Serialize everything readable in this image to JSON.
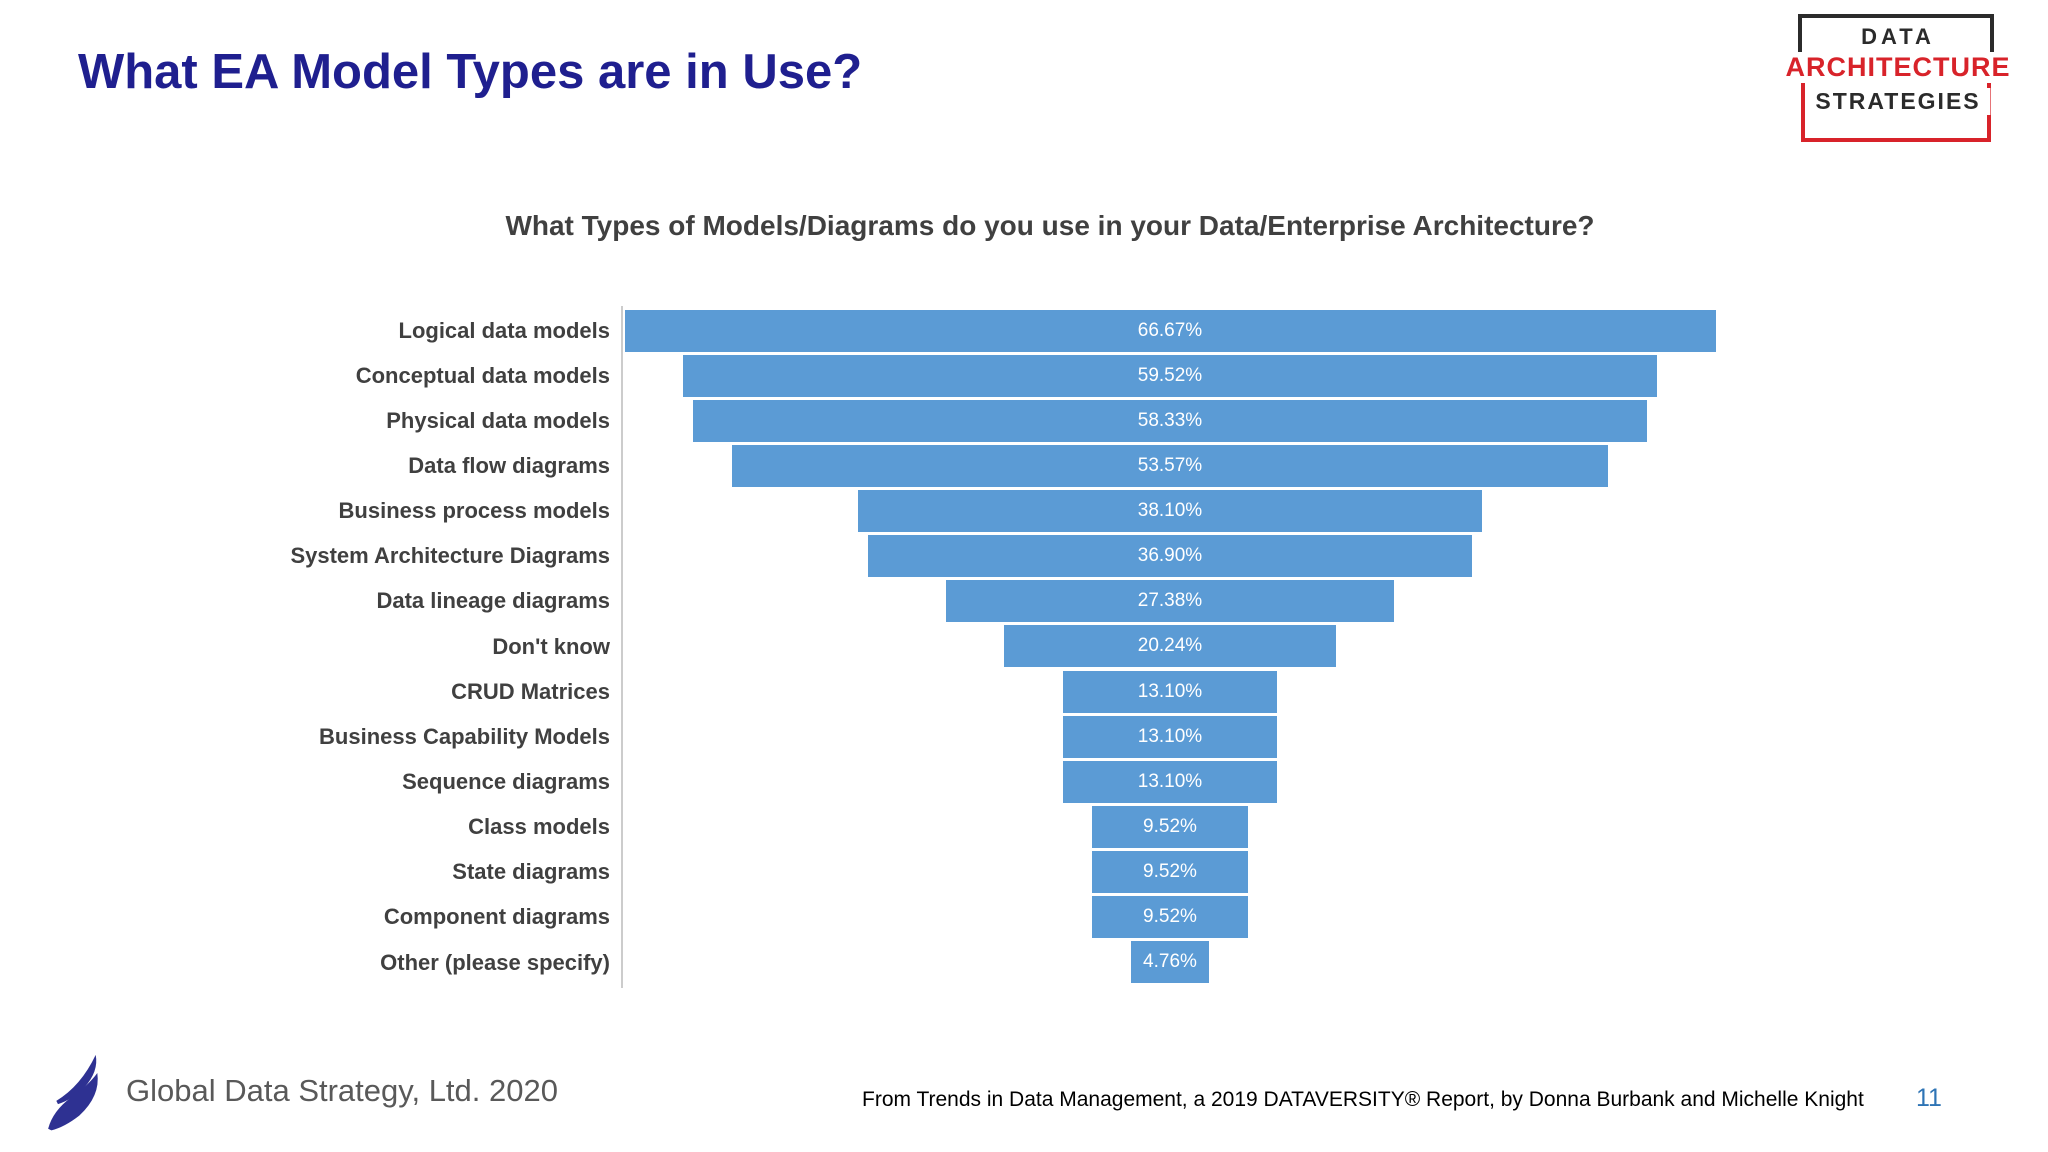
{
  "slide": {
    "title": "What EA Model Types are in Use?",
    "page_number": "11",
    "source_text": "From Trends in Data Management, a 2019 DATAVERSITY® Report, by Donna Burbank and Michelle Knight",
    "footer_brand": "Global Data Strategy, Ltd. 2020"
  },
  "das_logo": {
    "line1": "DATA",
    "line2": "ARCHITECTURE",
    "line3": "STRATEGIES"
  },
  "colors": {
    "slide_title": "#1F1F8F",
    "bar_blue": "#5B9BD5",
    "bar_value_text": "#FFFFFF",
    "category_label": "#404040",
    "chart_title": "#404040",
    "axis_line": "#CCCCCC",
    "page_number_blue": "#2E74B5",
    "logo_red": "#D8232A",
    "logo_black": "#2B2B2B",
    "gds_navy": "#2E3192",
    "footer_brand_gray": "#595959"
  },
  "chart_data": {
    "type": "bar",
    "orientation": "horizontal-centered-funnel",
    "title": "What Types of Models/Diagrams do you use in your Data/Enterprise Architecture?",
    "categories": [
      "Logical data models",
      "Conceptual data models",
      "Physical data models",
      "Data flow diagrams",
      "Business process models",
      "System Architecture Diagrams",
      "Data lineage diagrams",
      "Don't know",
      "CRUD Matrices",
      "Business Capability Models",
      "Sequence diagrams",
      "Class models",
      "State diagrams",
      "Component diagrams",
      "Other (please specify)"
    ],
    "values": [
      66.67,
      59.52,
      58.33,
      53.57,
      38.1,
      36.9,
      27.38,
      20.24,
      13.1,
      13.1,
      13.1,
      9.52,
      9.52,
      9.52,
      4.76
    ],
    "value_labels": [
      "66.67%",
      "59.52%",
      "58.33%",
      "53.57%",
      "38.10%",
      "36.90%",
      "27.38%",
      "20.24%",
      "13.10%",
      "13.10%",
      "13.10%",
      "9.52%",
      "9.52%",
      "9.52%",
      "4.76%"
    ],
    "xlim": [
      0,
      66.67
    ],
    "bar_color": "#5B9BD5",
    "value_label_position": "center-of-bar",
    "grid": false,
    "legend": false
  }
}
